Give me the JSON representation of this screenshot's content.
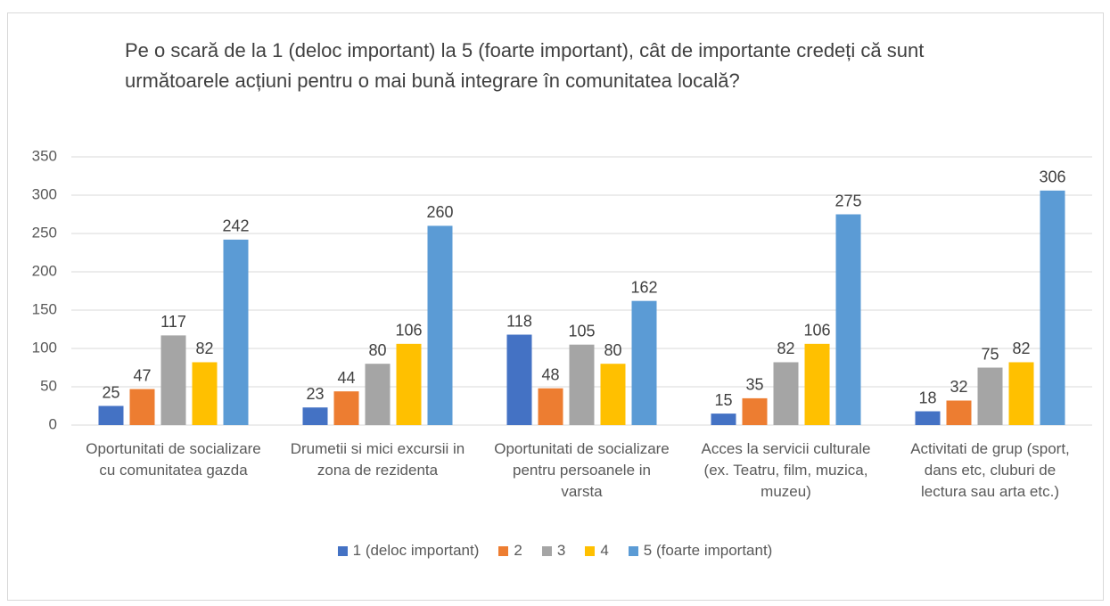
{
  "chart_data": {
    "type": "bar",
    "title": "Pe o scară de la 1 (deloc important) la 5 (foarte important), cât de importante credeți că sunt următoarele acțiuni pentru o mai bună integrare în comunitatea locală?",
    "categories": [
      "Oportunitati de socializare cu comunitatea gazda",
      "Drumetii si mici excursii in zona de rezidenta",
      "Oportunitati de socializare pentru persoanele in varsta",
      "Acces la servicii culturale (ex. Teatru, film, muzica, muzeu)",
      "Activitati de grup (sport, dans etc, cluburi de lectura sau arta etc.)"
    ],
    "series": [
      {
        "name": "1 (deloc important)",
        "color": "#4472c4",
        "values": [
          25,
          23,
          118,
          15,
          18
        ]
      },
      {
        "name": "2",
        "color": "#ed7d31",
        "values": [
          47,
          44,
          48,
          35,
          32
        ]
      },
      {
        "name": "3",
        "color": "#a5a5a5",
        "values": [
          117,
          80,
          105,
          82,
          75
        ]
      },
      {
        "name": "4",
        "color": "#ffc000",
        "values": [
          82,
          106,
          80,
          106,
          82
        ]
      },
      {
        "name": "5 (foarte important)",
        "color": "#5b9bd5",
        "values": [
          242,
          260,
          162,
          275,
          306
        ]
      }
    ],
    "ylim": [
      0,
      350
    ],
    "yticks": [
      0,
      50,
      100,
      150,
      200,
      250,
      300,
      350
    ],
    "grid": true,
    "legend": "bottom"
  }
}
